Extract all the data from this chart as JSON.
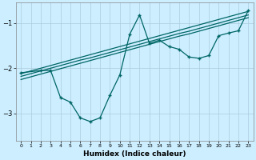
{
  "xlabel": "Humidex (Indice chaleur)",
  "bg_color": "#cceeff",
  "grid_color": "#aaccdd",
  "line_color": "#006666",
  "xlim": [
    -0.5,
    23.5
  ],
  "ylim": [
    -3.6,
    -0.55
  ],
  "yticks": [
    -3,
    -2,
    -1
  ],
  "xticks": [
    0,
    1,
    2,
    3,
    4,
    5,
    6,
    7,
    8,
    9,
    10,
    11,
    12,
    13,
    14,
    15,
    16,
    17,
    18,
    19,
    20,
    21,
    22,
    23
  ],
  "line1_x": [
    0,
    1,
    2,
    3,
    4,
    5,
    6,
    7,
    8,
    9,
    10,
    11,
    12,
    13,
    14,
    15,
    16,
    17,
    18,
    19,
    20,
    21,
    22,
    23
  ],
  "line1_y": [
    -2.12,
    -2.06,
    -2.0,
    -1.94,
    -1.88,
    -1.82,
    -1.76,
    -1.7,
    -1.64,
    -1.58,
    -1.52,
    -1.46,
    -1.4,
    -1.34,
    -1.28,
    -1.22,
    -1.16,
    -1.1,
    -1.04,
    -0.98,
    -0.92,
    -0.86,
    -0.8,
    -0.74
  ],
  "line2_x": [
    0,
    1,
    2,
    3,
    4,
    5,
    6,
    7,
    8,
    9,
    10,
    11,
    12,
    13,
    14,
    15,
    16,
    17,
    18,
    19,
    20,
    21,
    22,
    23
  ],
  "line2_y": [
    -2.18,
    -2.12,
    -2.06,
    -2.0,
    -1.94,
    -1.88,
    -1.82,
    -1.77,
    -1.71,
    -1.65,
    -1.59,
    -1.53,
    -1.47,
    -1.41,
    -1.35,
    -1.29,
    -1.23,
    -1.18,
    -1.12,
    -1.06,
    -1.0,
    -0.94,
    -0.88,
    -0.82
  ],
  "line3_x": [
    0,
    1,
    2,
    3,
    4,
    5,
    6,
    7,
    8,
    9,
    10,
    11,
    12,
    13,
    14,
    15,
    16,
    17,
    18,
    19,
    20,
    21,
    22,
    23
  ],
  "line3_y": [
    -2.25,
    -2.19,
    -2.13,
    -2.07,
    -2.01,
    -1.95,
    -1.89,
    -1.83,
    -1.77,
    -1.71,
    -1.65,
    -1.59,
    -1.53,
    -1.47,
    -1.41,
    -1.35,
    -1.29,
    -1.24,
    -1.18,
    -1.12,
    -1.06,
    -1.0,
    -0.94,
    -0.88
  ],
  "line4_x": [
    0,
    2,
    3,
    4,
    5,
    6,
    7,
    8,
    9,
    10,
    11,
    12,
    13,
    14,
    15,
    16,
    17,
    18,
    19,
    20,
    21,
    22,
    23
  ],
  "line4_y": [
    -2.1,
    -2.05,
    -2.05,
    -2.65,
    -2.75,
    -3.1,
    -3.18,
    -3.1,
    -2.6,
    -2.15,
    -1.25,
    -0.82,
    -1.45,
    -1.38,
    -1.52,
    -1.58,
    -1.75,
    -1.78,
    -1.72,
    -1.28,
    -1.22,
    -1.17,
    -0.72
  ]
}
